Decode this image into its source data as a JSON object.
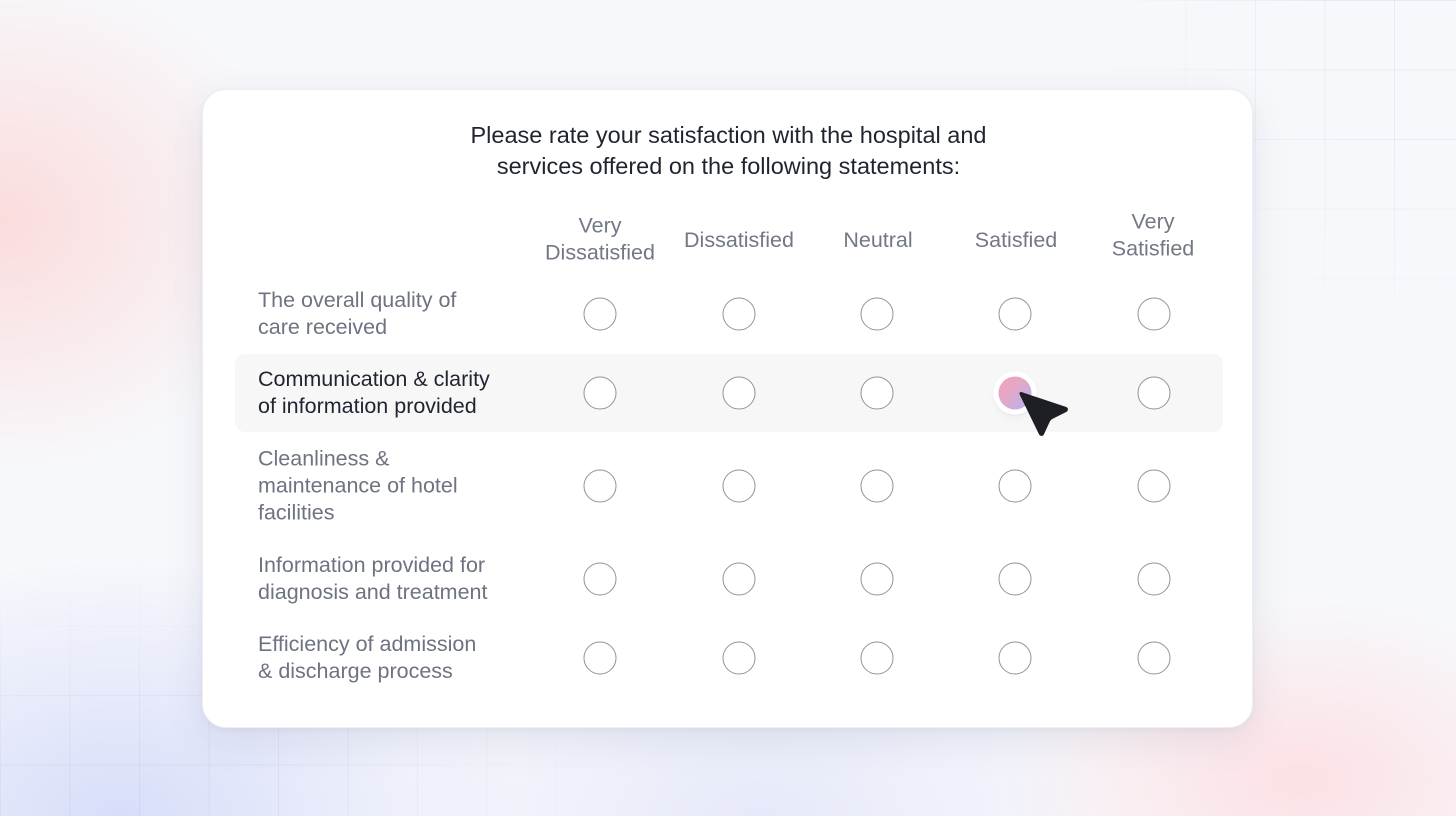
{
  "survey": {
    "title_line1": "Please rate your satisfaction with the hospital and",
    "title_line2": "services offered on the following statements:",
    "columns": [
      {
        "line1": "Very",
        "line2": "Dissatisfied"
      },
      {
        "line1": "Dissatisfied",
        "line2": ""
      },
      {
        "line1": "Neutral",
        "line2": ""
      },
      {
        "line1": "Satisfied",
        "line2": ""
      },
      {
        "line1": "Very",
        "line2": "Satisfied"
      }
    ],
    "rows": [
      {
        "line1": "The overall quality of",
        "line2": "care received",
        "line3": "",
        "selected_index": null
      },
      {
        "line1": "Communication & clarity",
        "line2": "of information provided",
        "line3": "",
        "selected_index": 3
      },
      {
        "line1": "Cleanliness &",
        "line2": "maintenance of hotel",
        "line3": "facilities",
        "selected_index": null
      },
      {
        "line1": "Information provided for",
        "line2": "diagnosis and treatment",
        "line3": "",
        "selected_index": null
      },
      {
        "line1": "Efficiency of admission",
        "line2": "& discharge process",
        "line3": "",
        "selected_index": null
      }
    ]
  },
  "colors": {
    "selected_gradient_start": "#f0a2ba",
    "selected_gradient_end": "#b0b4f1",
    "active_row_bg": "#f7f7f8",
    "title_text": "#1f2430",
    "muted_text": "#737885",
    "radio_border": "#8f939d"
  },
  "icons": {
    "cursor": "mouse-pointer-icon"
  }
}
